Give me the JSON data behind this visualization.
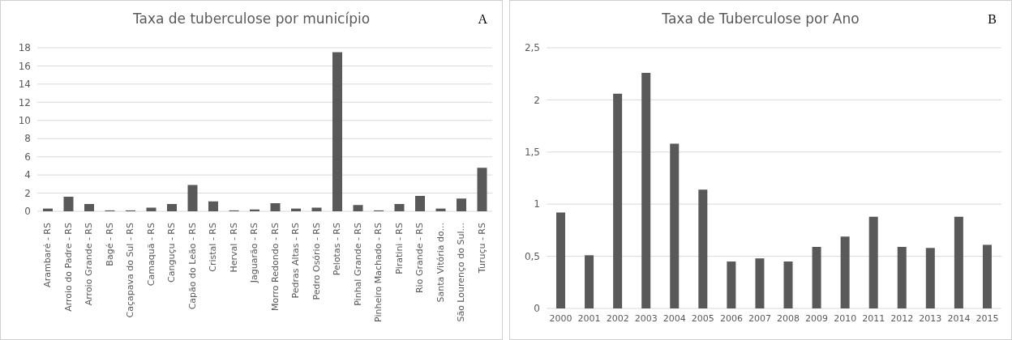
{
  "chart_data": [
    {
      "type": "bar",
      "title": "Taxa de tuberculose por município",
      "annotations": [
        "A"
      ],
      "categories": [
        "Arambaré - RS",
        "Arroio do Padre - RS",
        "Arroio Grande - RS",
        "Bagé - RS",
        "Caçapava do Sul - RS",
        "Camaquã - RS",
        "Canguçu - RS",
        "Capão do Leão - RS",
        "Cristal - RS",
        "Herval - RS",
        "Jaguarão - RS",
        "Morro Redondo - RS",
        "Pedras Altas - RS",
        "Pedro Osório - RS",
        "Pelotas - RS",
        "Pinhal Grande - RS",
        "Pinheiro Machado - RS",
        "Piratini - RS",
        "Rio Grande - RS",
        "Santa Vitória do...",
        "São Lourenço do Sul...",
        "Turuçu - RS"
      ],
      "values": [
        0.3,
        1.6,
        0.8,
        0.1,
        0.1,
        0.4,
        0.8,
        2.9,
        1.1,
        0.1,
        0.2,
        0.9,
        0.3,
        0.4,
        17.5,
        0.7,
        0.1,
        0.8,
        1.7,
        0.3,
        1.4,
        4.8
      ],
      "color": "#595959",
      "ylim": [
        0,
        18
      ],
      "yticks": [
        0,
        2,
        4,
        6,
        8,
        10,
        12,
        14,
        16,
        18
      ],
      "grid": "y"
    },
    {
      "type": "bar",
      "title": "Taxa de Tuberculose por Ano",
      "annotations": [
        "B"
      ],
      "categories": [
        "2000",
        "2001",
        "2002",
        "2003",
        "2004",
        "2005",
        "2006",
        "2007",
        "2008",
        "2009",
        "2010",
        "2011",
        "2012",
        "2013",
        "2014",
        "2015"
      ],
      "values": [
        0.92,
        0.51,
        2.06,
        2.26,
        1.58,
        1.14,
        0.45,
        0.48,
        0.45,
        0.59,
        0.69,
        0.88,
        0.59,
        0.58,
        0.88,
        0.61
      ],
      "color": "#595959",
      "ylim": [
        0,
        2.5
      ],
      "yticks": [
        0,
        {
          "value": 0.5,
          "label": "0,5"
        },
        1,
        {
          "value": 1.5,
          "label": "1,5"
        },
        2,
        {
          "value": 2.5,
          "label": "2,5"
        }
      ],
      "grid": "y"
    }
  ]
}
